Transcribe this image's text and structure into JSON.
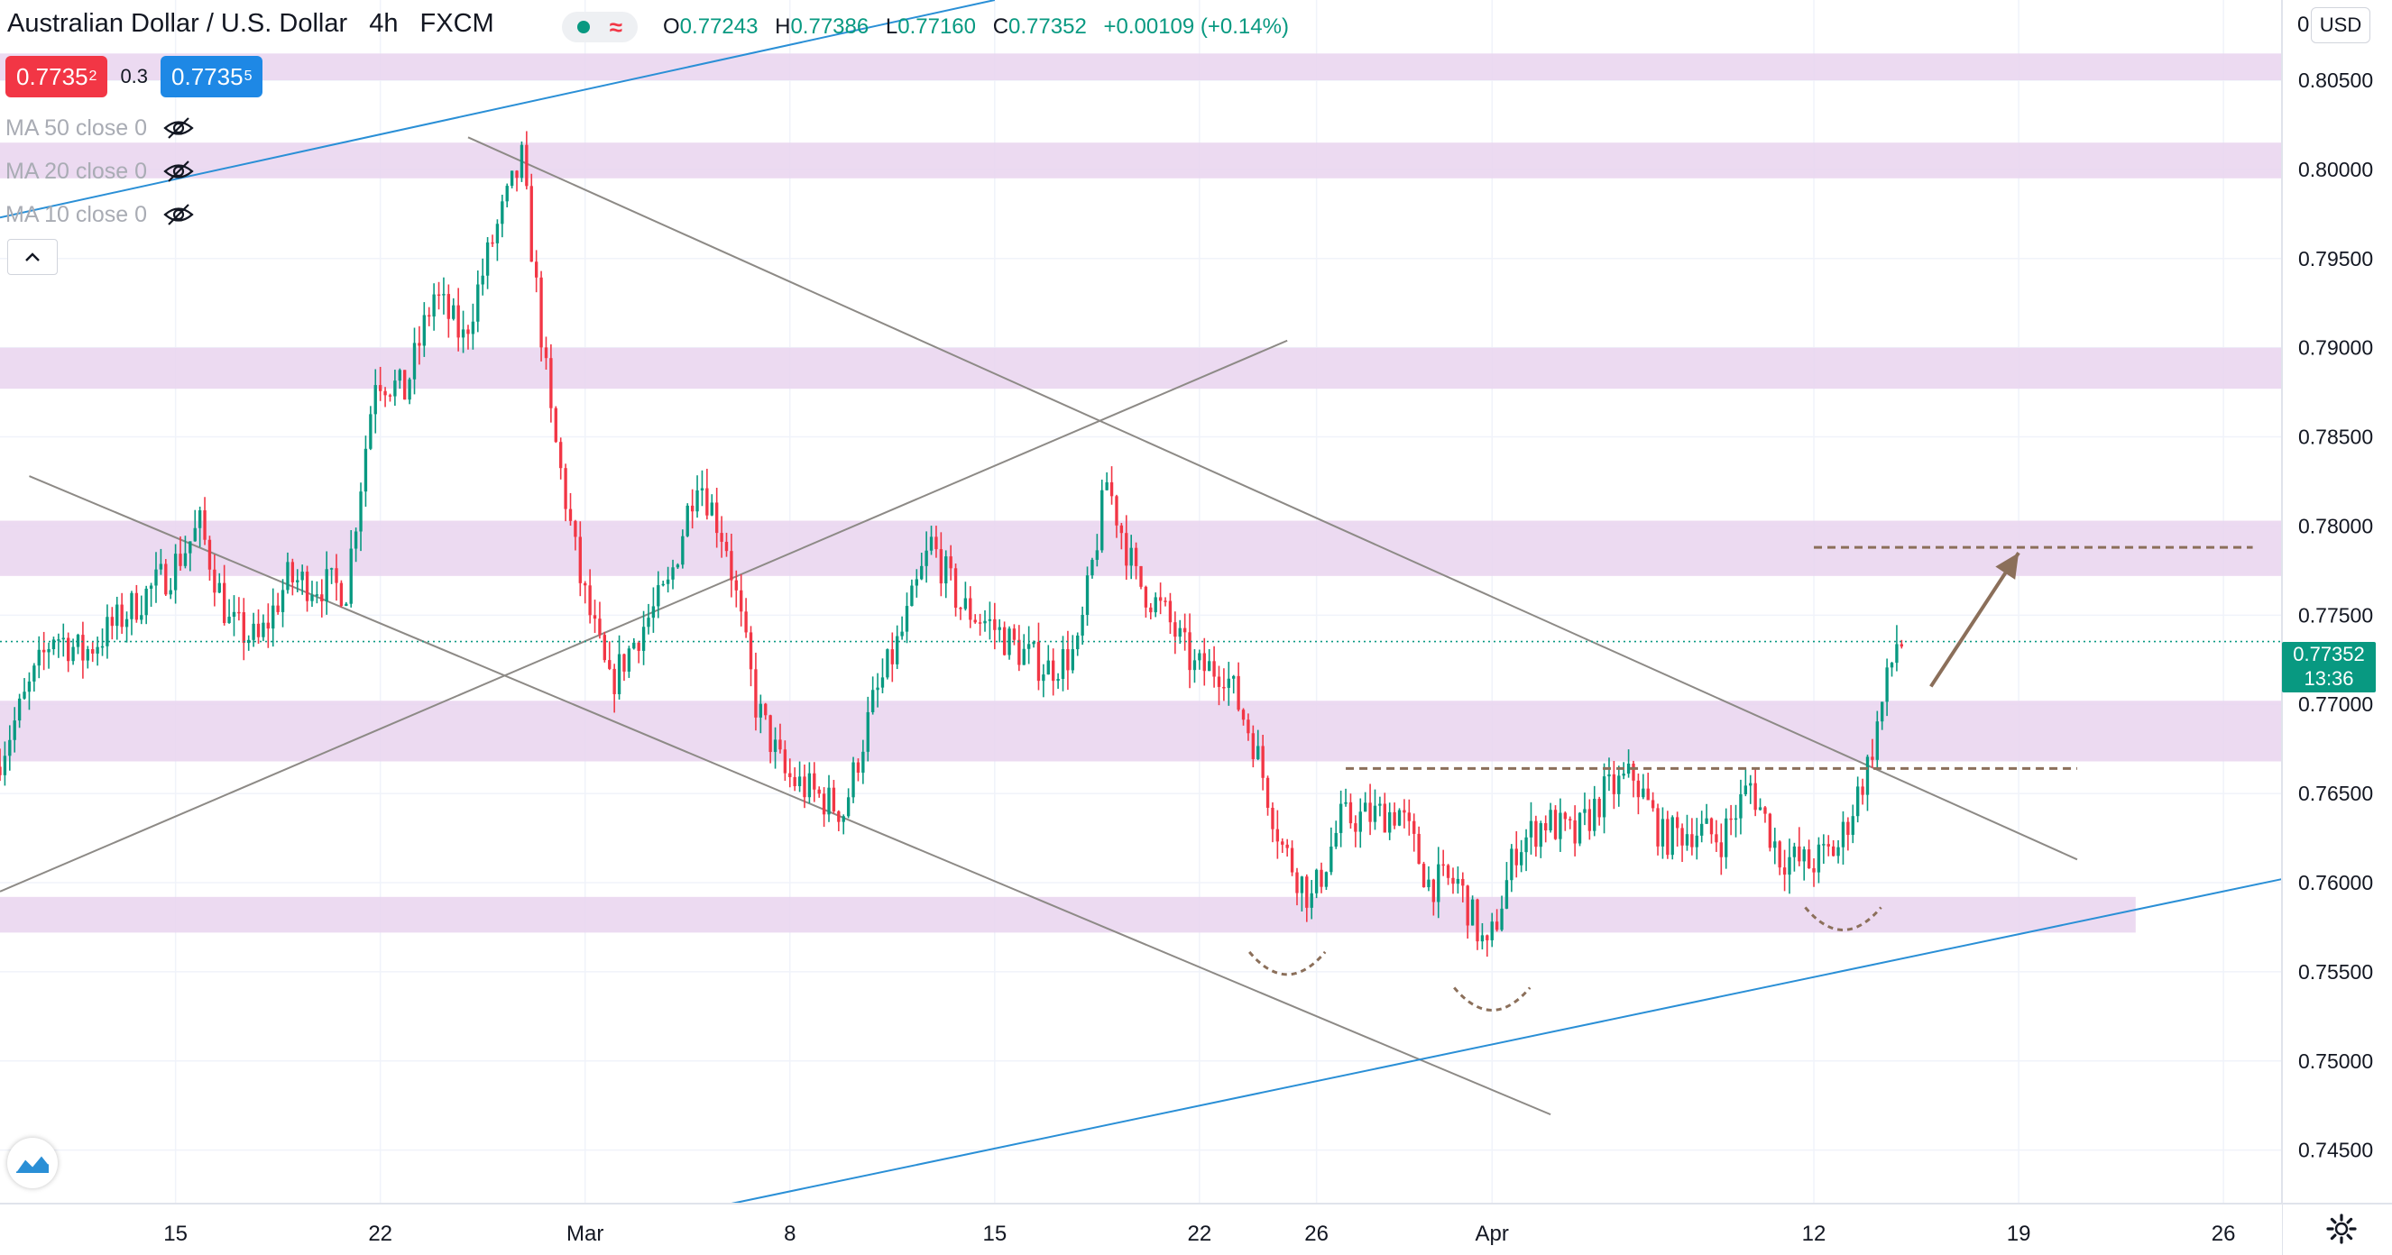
{
  "header": {
    "symbol": "Australian Dollar / U.S. Dollar",
    "interval": "4h",
    "broker": "FXCM",
    "ohlc": {
      "open_label": "O",
      "open": "0.77243",
      "high_label": "H",
      "high": "0.77386",
      "low_label": "L",
      "low": "0.77160",
      "close_label": "C",
      "close": "0.77352",
      "change": "+0.00109 (+0.14%)"
    }
  },
  "trade": {
    "sell_main": "0.7735",
    "sell_sup": "2",
    "spread": "0.3",
    "buy_main": "0.7735",
    "buy_sup": "5"
  },
  "indicators": [
    {
      "label": "MA 50 close 0",
      "icon": "eye-hidden-icon"
    },
    {
      "label": "MA 20 close 0",
      "icon": "eye-hidden-icon"
    },
    {
      "label": "MA 10 close 0",
      "icon": "eye-hidden-icon"
    }
  ],
  "price_axis": {
    "currency": "USD",
    "top_clipped_label": "0",
    "last_price": "0.77352",
    "countdown": "13:36"
  },
  "colors": {
    "up": "#089981",
    "down": "#f23645",
    "zone": "#e9d3ef",
    "trendline": "#8d8a86",
    "channel": "#2a8fd6",
    "annotation": "#8b6f5a"
  },
  "chart_data": {
    "type": "candlestick",
    "y_axis": {
      "min": 0.742,
      "max": 0.8095,
      "scale": "linear",
      "ticks": [
        "0.74500",
        "0.75000",
        "0.75500",
        "0.76000",
        "0.76500",
        "0.77000",
        "0.77500",
        "0.78000",
        "0.78500",
        "0.79000",
        "0.79500",
        "0.80000",
        "0.80500"
      ]
    },
    "x_axis": {
      "start": "2021-02-09",
      "end": "2021-04-28",
      "ticks": [
        {
          "date": "2021-02-15",
          "label": "15"
        },
        {
          "date": "2021-02-22",
          "label": "22"
        },
        {
          "date": "2021-03-01",
          "label": "Mar"
        },
        {
          "date": "2021-03-08",
          "label": "8"
        },
        {
          "date": "2021-03-15",
          "label": "15"
        },
        {
          "date": "2021-03-22",
          "label": "22"
        },
        {
          "date": "2021-03-26",
          "label": "26"
        },
        {
          "date": "2021-04-01",
          "label": "Apr"
        },
        {
          "date": "2021-04-12",
          "label": "12"
        },
        {
          "date": "2021-04-19",
          "label": "19"
        },
        {
          "date": "2021-04-26",
          "label": "26"
        }
      ]
    },
    "grid": true,
    "current_price": 0.77352,
    "price_path": [
      [
        "2021-02-09",
        0.7665
      ],
      [
        "2021-02-11",
        0.774
      ],
      [
        "2021-02-12",
        0.7728
      ],
      [
        "2021-02-15",
        0.7775
      ],
      [
        "2021-02-16",
        0.78
      ],
      [
        "2021-02-17",
        0.7745
      ],
      [
        "2021-02-18",
        0.7735
      ],
      [
        "2021-02-19",
        0.777
      ],
      [
        "2021-02-21",
        0.7765
      ],
      [
        "2021-02-22",
        0.7885
      ],
      [
        "2021-02-23",
        0.7875
      ],
      [
        "2021-02-24",
        0.793
      ],
      [
        "2021-02-25",
        0.7905
      ],
      [
        "2021-02-26",
        0.796
      ],
      [
        "2021-02-27",
        0.8005
      ],
      [
        "2021-02-28",
        0.786
      ],
      [
        "2021-03-01",
        0.777
      ],
      [
        "2021-03-02",
        0.771
      ],
      [
        "2021-03-03",
        0.774
      ],
      [
        "2021-03-04",
        0.7765
      ],
      [
        "2021-03-05",
        0.783
      ],
      [
        "2021-03-06",
        0.779
      ],
      [
        "2021-03-07",
        0.77
      ],
      [
        "2021-03-08",
        0.766
      ],
      [
        "2021-03-09",
        0.765
      ],
      [
        "2021-03-10",
        0.764
      ],
      [
        "2021-03-11",
        0.77
      ],
      [
        "2021-03-12",
        0.774
      ],
      [
        "2021-03-13",
        0.779
      ],
      [
        "2021-03-14",
        0.7755
      ],
      [
        "2021-03-15",
        0.7745
      ],
      [
        "2021-03-16",
        0.773
      ],
      [
        "2021-03-17",
        0.772
      ],
      [
        "2021-03-18",
        0.773
      ],
      [
        "2021-03-19",
        0.7825
      ],
      [
        "2021-03-20",
        0.777
      ],
      [
        "2021-03-21",
        0.775
      ],
      [
        "2021-03-22",
        0.772
      ],
      [
        "2021-03-23",
        0.772
      ],
      [
        "2021-03-24",
        0.768
      ],
      [
        "2021-03-25",
        0.762
      ],
      [
        "2021-03-26",
        0.759
      ],
      [
        "2021-03-27",
        0.7635
      ],
      [
        "2021-03-29",
        0.764
      ],
      [
        "2021-03-30",
        0.76
      ],
      [
        "2021-03-31",
        0.76
      ],
      [
        "2021-04-01",
        0.756
      ],
      [
        "2021-04-02",
        0.762
      ],
      [
        "2021-04-03",
        0.7635
      ],
      [
        "2021-04-04",
        0.7625
      ],
      [
        "2021-04-05",
        0.765
      ],
      [
        "2021-04-06",
        0.766
      ],
      [
        "2021-04-07",
        0.7625
      ],
      [
        "2021-04-08",
        0.763
      ],
      [
        "2021-04-09",
        0.7625
      ],
      [
        "2021-04-10",
        0.7655
      ],
      [
        "2021-04-11",
        0.7615
      ],
      [
        "2021-04-12",
        0.761
      ],
      [
        "2021-04-13",
        0.762
      ],
      [
        "2021-04-14",
        0.7665
      ],
      [
        "2021-04-15",
        0.7735
      ]
    ],
    "zones": [
      {
        "from": 0.805,
        "to": 0.8065
      },
      {
        "from": 0.7995,
        "to": 0.8015
      },
      {
        "from": 0.7877,
        "to": 0.79
      },
      {
        "from": 0.7772,
        "to": 0.7803
      },
      {
        "from": 0.7668,
        "to": 0.7702
      },
      {
        "from": 0.7572,
        "to": 0.7592,
        "end": "2021-04-23"
      }
    ],
    "trendlines": [
      {
        "style": "gray",
        "from": [
          "2021-02-25",
          0.8018
        ],
        "to": [
          "2021-04-21",
          0.7613
        ]
      },
      {
        "style": "gray",
        "from": [
          "2021-02-10",
          0.7828
        ],
        "to": [
          "2021-04-03",
          0.747
        ]
      },
      {
        "style": "gray",
        "from": [
          "2021-02-09",
          0.7595
        ],
        "to": [
          "2021-03-25",
          0.7904
        ]
      },
      {
        "style": "blue",
        "from": [
          "2021-02-09",
          0.7973
        ],
        "to": [
          "2021-03-15",
          0.8095
        ]
      },
      {
        "style": "blue",
        "from": [
          "2021-03-06",
          0.742
        ],
        "to": [
          "2021-04-28",
          0.7602
        ]
      }
    ],
    "annotations": {
      "neckline": {
        "from": [
          "2021-03-27",
          0.7664
        ],
        "to": [
          "2021-04-21",
          0.7664
        ]
      },
      "target": {
        "from": [
          "2021-04-12",
          0.7788
        ],
        "to": [
          "2021-04-27",
          0.7788
        ]
      },
      "arrow": {
        "from": [
          "2021-04-16",
          0.771
        ],
        "to": [
          "2021-04-19",
          0.7785
        ]
      },
      "troughs": [
        {
          "center": [
            "2021-03-25",
            0.755
          ]
        },
        {
          "center": [
            "2021-04-01",
            0.753
          ]
        },
        {
          "center": [
            "2021-04-13",
            0.7575
          ]
        }
      ]
    }
  }
}
